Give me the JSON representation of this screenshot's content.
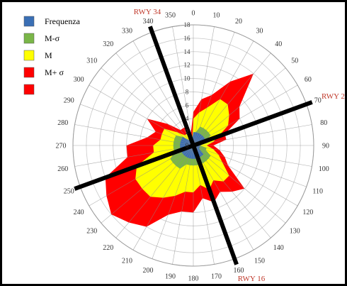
{
  "chart_data": {
    "type": "radar",
    "directions": [
      0,
      10,
      20,
      30,
      40,
      50,
      60,
      70,
      80,
      90,
      100,
      110,
      120,
      130,
      140,
      150,
      160,
      170,
      180,
      190,
      200,
      210,
      220,
      230,
      240,
      250,
      260,
      270,
      280,
      290,
      300,
      310,
      320,
      330,
      340,
      350
    ],
    "radial_ticks": [
      0,
      2,
      4,
      6,
      8,
      10,
      12,
      14,
      16,
      18
    ],
    "rmax": 18,
    "legend": [
      "Frequenza",
      "M-σ",
      "M",
      "M+ σ",
      ""
    ],
    "series": [
      {
        "name": "M+ σ",
        "color": "#ff0000",
        "values": [
          5,
          7,
          8,
          11,
          14,
          9,
          8,
          5,
          5,
          3,
          4,
          5,
          6,
          10,
          9,
          8,
          9,
          8,
          10,
          10,
          11,
          14,
          15,
          16,
          15,
          14,
          10,
          10,
          7,
          6,
          8,
          5,
          3,
          3,
          3,
          2
        ]
      },
      {
        "name": "M",
        "color": "#ffff00",
        "values": [
          4,
          5,
          6,
          8,
          8,
          7,
          6,
          4,
          3,
          2,
          3,
          4,
          5,
          7,
          7,
          6,
          7,
          6,
          7,
          7,
          8,
          9,
          10,
          10,
          10,
          9,
          6,
          6,
          5,
          5,
          5,
          3,
          2,
          2,
          2,
          1
        ]
      },
      {
        "name": "M-σ",
        "color": "#7ab648",
        "values": [
          2,
          2,
          3,
          3,
          3,
          3,
          3,
          2,
          2,
          1,
          2,
          2,
          3,
          3,
          3,
          3,
          3,
          3,
          3,
          3,
          3,
          4,
          4,
          4,
          4,
          3,
          3,
          3,
          3,
          3,
          3,
          2,
          1,
          1,
          1,
          1
        ]
      },
      {
        "name": "Frequenza",
        "color": "#3a6fb5",
        "values": [
          2,
          2,
          2,
          2,
          2,
          2,
          2,
          1.5,
          1.5,
          1,
          1,
          1,
          1,
          2,
          2,
          2,
          2,
          2,
          2,
          2,
          2,
          2,
          2,
          2,
          2,
          2,
          2,
          2,
          2,
          2,
          2,
          2,
          1,
          1,
          1,
          1
        ]
      }
    ],
    "runways": [
      {
        "label": "RWY 34",
        "bearing": 340
      },
      {
        "label": "RWY 16",
        "bearing": 160
      },
      {
        "label": "RWY 2",
        "bearing": 70
      },
      {
        "label": "",
        "bearing": 250
      }
    ]
  }
}
